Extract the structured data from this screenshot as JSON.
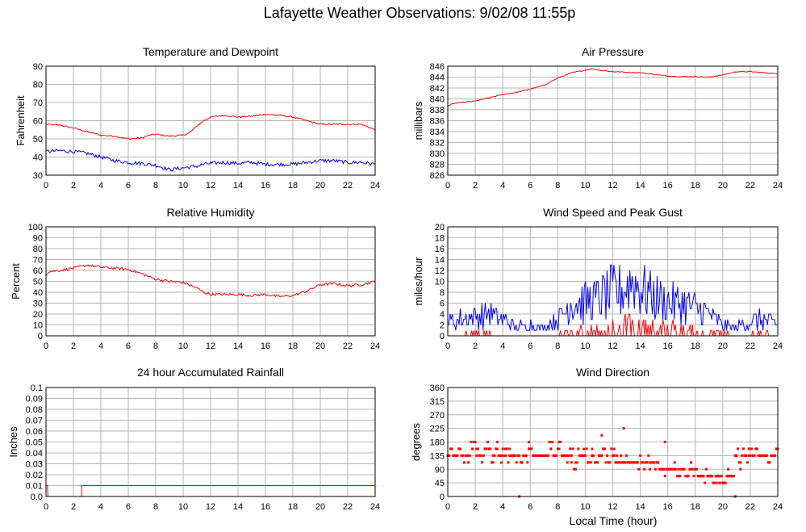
{
  "title": "Lafayette Weather Observations: 9/02/08 11:55p",
  "xlabel": "Local Time (hour)",
  "colors": {
    "red": "#ff0000",
    "blue": "#0000ff",
    "grid": "#b4b4b4",
    "axis": "#000000"
  },
  "chart_data": [
    {
      "id": "temp",
      "type": "line",
      "title": "Temperature and Dewpoint",
      "ylabel": "Fahrenheit",
      "xlim": [
        0,
        24
      ],
      "ylim": [
        30,
        90
      ],
      "xticks": [
        0,
        2,
        4,
        6,
        8,
        10,
        12,
        14,
        16,
        18,
        20,
        22,
        24
      ],
      "yticks": [
        30,
        40,
        50,
        60,
        70,
        80,
        90
      ],
      "grid": true,
      "series": [
        {
          "color": "#ff0000",
          "noise": 0.4,
          "x": [
            0,
            1,
            2,
            3,
            4,
            5,
            6,
            7,
            7.5,
            8,
            9,
            10,
            10.5,
            11,
            11.5,
            12,
            13,
            14,
            15,
            16,
            17,
            18,
            19,
            20,
            21,
            22,
            23,
            24
          ],
          "y": [
            58,
            57.5,
            56,
            54,
            52,
            51.5,
            50,
            50.5,
            52,
            52.5,
            51.5,
            52,
            53.5,
            57,
            60,
            62,
            63,
            62,
            62.5,
            63.5,
            63,
            62,
            60,
            58,
            58,
            58,
            58,
            55
          ]
        },
        {
          "color": "#0000ff",
          "noise": 1.0,
          "x": [
            0,
            1,
            2,
            3,
            4,
            5,
            6,
            7,
            8,
            9,
            10,
            11,
            11.5,
            12,
            13,
            14,
            15,
            16,
            17,
            18,
            19,
            20,
            21,
            22,
            23,
            24
          ],
          "y": [
            43,
            43.5,
            43,
            42,
            40,
            38,
            37,
            36.5,
            35.5,
            33,
            34,
            35,
            36,
            36.5,
            37,
            36.5,
            37,
            36,
            36,
            36,
            37,
            38,
            38,
            37,
            37,
            36
          ]
        }
      ]
    },
    {
      "id": "pressure",
      "type": "line",
      "title": "Air Pressure",
      "ylabel": "millibars",
      "xlim": [
        0,
        24
      ],
      "ylim": [
        826,
        846
      ],
      "xticks": [
        0,
        2,
        4,
        6,
        8,
        10,
        12,
        14,
        16,
        18,
        20,
        22,
        24
      ],
      "yticks": [
        826,
        828,
        830,
        832,
        834,
        836,
        838,
        840,
        842,
        844,
        846
      ],
      "grid": true,
      "series": [
        {
          "color": "#ff0000",
          "noise": 0.08,
          "x": [
            0,
            0.5,
            2,
            3,
            4,
            5,
            6,
            7,
            8,
            9,
            10,
            10.5,
            11,
            12,
            13,
            14,
            15,
            16,
            17,
            18,
            19,
            20,
            21,
            22,
            23,
            24
          ],
          "y": [
            838.7,
            839.2,
            839.6,
            840.2,
            840.8,
            841.2,
            841.8,
            842.5,
            843.8,
            844.8,
            845.3,
            845.5,
            845.3,
            845.0,
            844.9,
            844.8,
            844.5,
            844.2,
            844.1,
            844.1,
            844.0,
            844.4,
            845.0,
            845.0,
            844.8,
            844.6
          ]
        }
      ]
    },
    {
      "id": "humidity",
      "type": "line",
      "title": "Relative Humidity",
      "ylabel": "Percent",
      "xlim": [
        0,
        24
      ],
      "ylim": [
        0,
        100
      ],
      "xticks": [
        0,
        2,
        4,
        6,
        8,
        10,
        12,
        14,
        16,
        18,
        20,
        22,
        24
      ],
      "yticks": [
        0,
        10,
        20,
        30,
        40,
        50,
        60,
        70,
        80,
        90,
        100
      ],
      "grid": true,
      "series": [
        {
          "color": "#ff0000",
          "noise": 1.2,
          "x": [
            0,
            0.2,
            1,
            2,
            3,
            4,
            5,
            6,
            7,
            8,
            9,
            10,
            11,
            11.5,
            12,
            13,
            14,
            15,
            16,
            17,
            18,
            19,
            20,
            21,
            22,
            23,
            24
          ],
          "y": [
            56,
            59,
            60,
            62,
            65,
            63,
            62,
            61,
            57,
            52,
            50,
            49,
            44,
            40,
            38,
            38,
            38,
            37,
            38,
            36,
            37,
            41,
            47,
            48,
            46,
            47,
            50
          ]
        }
      ]
    },
    {
      "id": "wind",
      "type": "line",
      "title": "Wind Speed and Peak Gust",
      "ylabel": "miles/hour",
      "xlim": [
        0,
        24
      ],
      "ylim": [
        0,
        20
      ],
      "xticks": [
        0,
        2,
        4,
        6,
        8,
        10,
        12,
        14,
        16,
        18,
        20,
        22,
        24
      ],
      "yticks": [
        0,
        2,
        4,
        6,
        8,
        10,
        12,
        14,
        16,
        18,
        20
      ],
      "grid": true,
      "series": [
        {
          "color": "#0000ff",
          "kind": "gust",
          "x": [
            0,
            1,
            2,
            3,
            4,
            5,
            6,
            7,
            8,
            9,
            10,
            11,
            12,
            13,
            13.5,
            14,
            15,
            16,
            17,
            18,
            19,
            20,
            21,
            22,
            23,
            24
          ],
          "y": [
            2.5,
            3,
            3.5,
            4,
            3,
            1.5,
            2,
            1.5,
            3,
            6,
            6,
            7,
            8,
            9,
            10,
            9,
            7,
            6,
            6,
            5,
            4,
            2,
            1.5,
            2.5,
            3,
            2
          ]
        },
        {
          "color": "#ff0000",
          "kind": "speed",
          "x": [
            0,
            1,
            2,
            3,
            4,
            5,
            6,
            7,
            8,
            9,
            10,
            11,
            12,
            13,
            14,
            15,
            16,
            17,
            18,
            19,
            20,
            21,
            22,
            23,
            24
          ],
          "y": [
            0.2,
            0.5,
            0.6,
            0.6,
            0.3,
            0,
            0,
            0,
            0.5,
            1,
            1.2,
            1.5,
            2,
            2.5,
            2.5,
            2.2,
            2,
            2,
            1.5,
            1,
            0.5,
            0.2,
            0.4,
            0.5,
            0.2
          ]
        }
      ]
    },
    {
      "id": "rain",
      "type": "line",
      "title": "24 hour Accumulated Rainfall",
      "ylabel": "Inches",
      "xlim": [
        0,
        24
      ],
      "ylim": [
        0,
        0.1
      ],
      "xticks": [
        0,
        2,
        4,
        6,
        8,
        10,
        12,
        14,
        16,
        18,
        20,
        22,
        24
      ],
      "yticks": [
        "0.0",
        "0.01",
        "0.02",
        "0.03",
        "0.04",
        "0.05",
        "0.06",
        "0.07",
        "0.08",
        "0.09",
        "0.1"
      ],
      "grid": true,
      "series": [
        {
          "color": "#ff0000",
          "noise": 0,
          "x": [
            0,
            0.1,
            0.15,
            2.6,
            2.6,
            24
          ],
          "y": [
            0.01,
            0.01,
            0,
            0,
            0.01,
            0.01
          ]
        }
      ]
    },
    {
      "id": "direction",
      "type": "scatter",
      "title": "Wind Direction",
      "ylabel": "degrees",
      "xlim": [
        0,
        24
      ],
      "ylim": [
        0,
        360
      ],
      "xticks": [
        0,
        2,
        4,
        6,
        8,
        10,
        12,
        14,
        16,
        18,
        20,
        22,
        24
      ],
      "yticks": [
        0,
        45,
        90,
        135,
        180,
        225,
        270,
        315,
        360
      ],
      "grid": true,
      "series": [
        {
          "color": "#ff0000",
          "x": [
            0,
            0.3,
            0.6,
            0.9,
            1.2,
            1.5,
            1.8,
            2.1,
            2.4,
            2.7,
            3.0,
            3.3,
            3.6,
            3.9,
            4.2,
            4.5,
            4.8,
            5.1,
            5.4,
            5.7,
            6.0,
            6.3,
            6.6,
            6.9,
            7.2,
            7.5,
            7.8,
            8.1,
            8.4,
            8.7,
            9.0,
            9.3,
            9.6,
            9.9,
            10.2,
            10.5,
            10.8,
            11.1,
            11.4,
            11.7,
            12.0,
            12.3,
            12.6,
            12.9,
            13.2,
            13.5,
            13.8,
            14.1,
            14.4,
            14.7,
            15.0,
            15.3,
            15.6,
            15.9,
            16.2,
            16.5,
            16.8,
            17.1,
            17.4,
            17.7,
            18.0,
            18.3,
            18.6,
            18.9,
            19.2,
            19.5,
            19.8,
            20.1,
            20.4,
            20.7,
            21.0,
            21.3,
            21.6,
            21.9,
            22.2,
            22.5,
            22.8,
            23.1,
            23.4,
            23.7,
            24,
            5.2,
            5.9,
            7.5,
            10.5,
            11.2,
            12.8,
            15.8,
            19.6,
            20.9,
            12.1
          ],
          "y": [
            135,
            157,
            135,
            157,
            112,
            135,
            157,
            157,
            135,
            157,
            157,
            135,
            157,
            112,
            157,
            135,
            135,
            135,
            112,
            135,
            157,
            135,
            135,
            135,
            135,
            157,
            135,
            157,
            135,
            135,
            135,
            112,
            135,
            157,
            112,
            135,
            112,
            135,
            157,
            112,
            135,
            112,
            112,
            112,
            112,
            112,
            112,
            112,
            112,
            112,
            112,
            112,
            90,
            90,
            90,
            90,
            67,
            90,
            67,
            90,
            90,
            67,
            67,
            67,
            67,
            67,
            67,
            45,
            67,
            67,
            135,
            112,
            135,
            135,
            135,
            157,
            135,
            135,
            112,
            135,
            157,
            0,
            180,
            180,
            157,
            202,
            225,
            180,
            45,
            0,
            157
          ]
        }
      ]
    }
  ]
}
